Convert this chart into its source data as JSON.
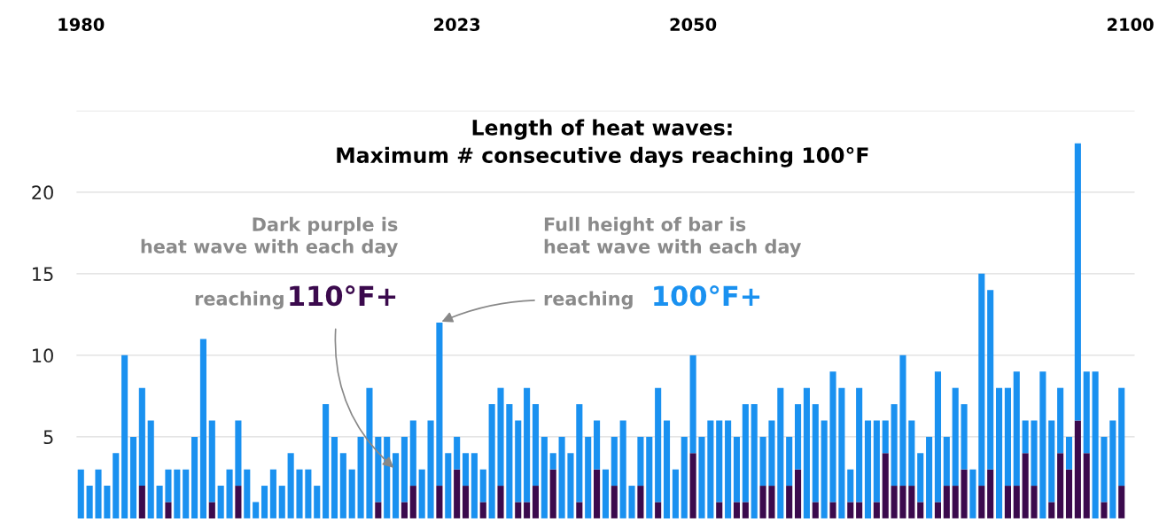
{
  "chart_data": {
    "type": "bar",
    "stacked": true,
    "title": "Length of heat waves:\nMaximum # consecutive days reaching 100°F",
    "x": [
      1980,
      1981,
      1982,
      1983,
      1984,
      1985,
      1986,
      1987,
      1988,
      1989,
      1990,
      1991,
      1992,
      1993,
      1994,
      1995,
      1996,
      1997,
      1998,
      1999,
      2000,
      2001,
      2002,
      2003,
      2004,
      2005,
      2006,
      2007,
      2008,
      2009,
      2010,
      2011,
      2012,
      2013,
      2014,
      2015,
      2016,
      2017,
      2018,
      2019,
      2020,
      2021,
      2022,
      2023,
      2024,
      2025,
      2026,
      2027,
      2028,
      2029,
      2030,
      2031,
      2032,
      2033,
      2034,
      2035,
      2036,
      2037,
      2038,
      2039,
      2040,
      2041,
      2042,
      2043,
      2044,
      2045,
      2046,
      2047,
      2048,
      2049,
      2050,
      2051,
      2052,
      2053,
      2054,
      2055,
      2056,
      2057,
      2058,
      2059,
      2060,
      2061,
      2062,
      2063,
      2064,
      2065,
      2066,
      2067,
      2068,
      2069,
      2070,
      2071,
      2072,
      2073,
      2074,
      2075,
      2076,
      2077,
      2078,
      2079,
      2080,
      2081,
      2082,
      2083,
      2084,
      2085,
      2086,
      2087,
      2088,
      2089,
      2090,
      2091,
      2092,
      2093,
      2094,
      2095,
      2096,
      2097,
      2098,
      2099
    ],
    "series": [
      {
        "color": "#3b0a4d",
        "values": [
          0,
          0,
          0,
          0,
          0,
          0,
          0,
          2,
          0,
          0,
          1,
          0,
          0,
          0,
          0,
          1,
          0,
          0,
          2,
          0,
          0,
          0,
          0,
          0,
          0,
          0,
          0,
          0,
          0,
          0,
          0,
          0,
          0,
          0,
          1,
          0,
          0,
          1,
          2,
          0,
          0,
          2,
          0,
          3,
          2,
          0,
          1,
          0,
          2,
          0,
          1,
          1,
          2,
          0,
          3,
          0,
          0,
          1,
          0,
          3,
          0,
          2,
          0,
          0,
          2,
          0,
          1,
          0,
          0,
          0,
          4,
          0,
          0,
          1,
          0,
          1,
          1,
          0,
          2,
          2,
          0,
          2,
          3,
          0,
          1,
          0,
          1,
          0,
          1,
          1,
          0,
          1,
          4,
          2,
          2,
          2,
          1,
          0,
          1,
          2,
          2,
          3,
          0,
          2,
          3,
          0,
          2,
          2,
          4,
          2,
          0,
          1,
          4,
          3,
          6,
          4,
          0,
          1,
          0,
          2
        ]
      },
      {
        "color": "#1a91f0",
        "values": [
          3,
          2,
          3,
          2,
          4,
          10,
          5,
          6,
          6,
          2,
          2,
          3,
          3,
          5,
          11,
          5,
          2,
          3,
          4,
          3,
          1,
          2,
          3,
          2,
          4,
          3,
          3,
          2,
          7,
          5,
          4,
          3,
          5,
          8,
          4,
          5,
          4,
          4,
          4,
          3,
          6,
          10,
          4,
          2,
          2,
          4,
          2,
          7,
          6,
          7,
          5,
          7,
          5,
          5,
          1,
          5,
          4,
          6,
          5,
          3,
          3,
          3,
          6,
          2,
          3,
          5,
          7,
          6,
          3,
          5,
          6,
          5,
          6,
          5,
          6,
          4,
          6,
          7,
          3,
          4,
          8,
          3,
          4,
          8,
          6,
          6,
          8,
          8,
          2,
          7,
          6,
          5,
          2,
          5,
          8,
          4,
          3,
          5,
          8,
          3,
          6,
          4,
          3,
          13,
          11,
          8,
          6,
          7,
          2,
          4,
          9,
          5,
          4,
          2,
          17,
          5,
          9,
          4,
          6,
          6
        ]
      }
    ],
    "xlim": [
      1979.5,
      2100.5
    ],
    "xticks": [
      1980,
      2023,
      2050,
      2100
    ],
    "ylim": [
      0,
      25
    ],
    "yticks": [
      5,
      10,
      15,
      20,
      {
        "value": 25,
        "label": null
      }
    ],
    "grid": "y",
    "annotations": [
      "Dark purple is\nheat wave with each day",
      "reaching",
      {
        "text": "110°F+",
        "x": 2016,
        "y": 3
      },
      "Full height of bar is\nheat wave with each day",
      {
        "text": "reaching",
        "x": 2021,
        "y": 12
      },
      "100°F+"
    ]
  }
}
